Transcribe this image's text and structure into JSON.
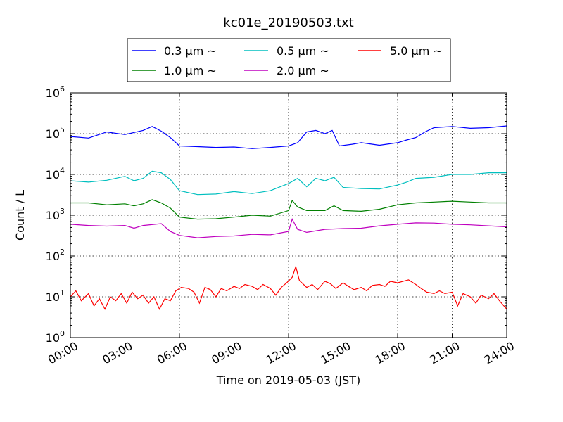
{
  "chart_data": {
    "type": "line",
    "title": "kc01e_20190503.txt",
    "xlabel": "Time on 2019-05-03 (JST)",
    "ylabel": "Count / L",
    "y_scale": "log",
    "ylim": [
      1,
      1000000
    ],
    "xlim": [
      "00:00",
      "24:00"
    ],
    "x_ticks": [
      "00:00",
      "03:00",
      "06:00",
      "09:00",
      "12:00",
      "15:00",
      "18:00",
      "21:00",
      "24:00"
    ],
    "y_ticks": [
      {
        "base": "10",
        "exp": "0"
      },
      {
        "base": "10",
        "exp": "1"
      },
      {
        "base": "10",
        "exp": "2"
      },
      {
        "base": "10",
        "exp": "3"
      },
      {
        "base": "10",
        "exp": "4"
      },
      {
        "base": "10",
        "exp": "5"
      },
      {
        "base": "10",
        "exp": "6"
      }
    ],
    "grid": true,
    "legend_position": "top-center",
    "series": [
      {
        "name": "0.3 μm ~",
        "color": "#0000ff",
        "points": [
          [
            0,
            85000
          ],
          [
            1,
            78000
          ],
          [
            2,
            110000
          ],
          [
            3,
            95000
          ],
          [
            4,
            120000
          ],
          [
            4.5,
            150000
          ],
          [
            5,
            115000
          ],
          [
            5.5,
            80000
          ],
          [
            6,
            50000
          ],
          [
            7,
            48000
          ],
          [
            8,
            46000
          ],
          [
            9,
            47000
          ],
          [
            10,
            43000
          ],
          [
            11,
            46000
          ],
          [
            12,
            50000
          ],
          [
            12.5,
            60000
          ],
          [
            13,
            110000
          ],
          [
            13.5,
            120000
          ],
          [
            14,
            100000
          ],
          [
            14.4,
            120000
          ],
          [
            14.8,
            50000
          ],
          [
            15.5,
            55000
          ],
          [
            16,
            60000
          ],
          [
            17,
            52000
          ],
          [
            18,
            60000
          ],
          [
            18.5,
            70000
          ],
          [
            19,
            80000
          ],
          [
            19.5,
            110000
          ],
          [
            20,
            140000
          ],
          [
            21,
            150000
          ],
          [
            22,
            135000
          ],
          [
            23,
            140000
          ],
          [
            24,
            155000
          ]
        ]
      },
      {
        "name": "0.5 μm ~",
        "color": "#00bfbf",
        "points": [
          [
            0,
            7000
          ],
          [
            1,
            6500
          ],
          [
            2,
            7200
          ],
          [
            3,
            9000
          ],
          [
            3.5,
            7000
          ],
          [
            4,
            8000
          ],
          [
            4.5,
            12000
          ],
          [
            5,
            11000
          ],
          [
            5.5,
            7500
          ],
          [
            6,
            4000
          ],
          [
            7,
            3200
          ],
          [
            8,
            3300
          ],
          [
            9,
            3800
          ],
          [
            10,
            3400
          ],
          [
            11,
            4000
          ],
          [
            12,
            6000
          ],
          [
            12.5,
            8000
          ],
          [
            13,
            5000
          ],
          [
            13.5,
            8000
          ],
          [
            14,
            7000
          ],
          [
            14.5,
            8500
          ],
          [
            15,
            4800
          ],
          [
            16,
            4500
          ],
          [
            17,
            4400
          ],
          [
            18,
            5500
          ],
          [
            18.5,
            6500
          ],
          [
            19,
            8000
          ],
          [
            20,
            8500
          ],
          [
            21,
            10000
          ],
          [
            22,
            10000
          ],
          [
            23,
            11000
          ],
          [
            24,
            11000
          ]
        ]
      },
      {
        "name": "1.0 μm ~",
        "color": "#008000",
        "points": [
          [
            0,
            2000
          ],
          [
            1,
            2000
          ],
          [
            2,
            1800
          ],
          [
            3,
            1900
          ],
          [
            3.5,
            1700
          ],
          [
            4,
            1900
          ],
          [
            4.5,
            2400
          ],
          [
            5,
            2000
          ],
          [
            5.5,
            1500
          ],
          [
            6,
            900
          ],
          [
            7,
            800
          ],
          [
            8,
            820
          ],
          [
            9,
            900
          ],
          [
            10,
            1000
          ],
          [
            11,
            950
          ],
          [
            12,
            1300
          ],
          [
            12.2,
            2300
          ],
          [
            12.5,
            1600
          ],
          [
            13,
            1300
          ],
          [
            14,
            1300
          ],
          [
            14.5,
            1700
          ],
          [
            15,
            1300
          ],
          [
            16,
            1250
          ],
          [
            17,
            1400
          ],
          [
            18,
            1800
          ],
          [
            19,
            2000
          ],
          [
            20,
            2100
          ],
          [
            21,
            2200
          ],
          [
            22,
            2100
          ],
          [
            23,
            2000
          ],
          [
            24,
            2000
          ]
        ]
      },
      {
        "name": "2.0 μm ~",
        "color": "#bf00bf",
        "points": [
          [
            0,
            600
          ],
          [
            1,
            560
          ],
          [
            2,
            540
          ],
          [
            3,
            560
          ],
          [
            3.5,
            480
          ],
          [
            4,
            560
          ],
          [
            5,
            620
          ],
          [
            5.5,
            400
          ],
          [
            6,
            320
          ],
          [
            7,
            280
          ],
          [
            8,
            300
          ],
          [
            9,
            310
          ],
          [
            10,
            340
          ],
          [
            11,
            330
          ],
          [
            12,
            400
          ],
          [
            12.2,
            800
          ],
          [
            12.5,
            450
          ],
          [
            13,
            380
          ],
          [
            14,
            450
          ],
          [
            15,
            470
          ],
          [
            16,
            480
          ],
          [
            17,
            550
          ],
          [
            18,
            600
          ],
          [
            19,
            650
          ],
          [
            20,
            640
          ],
          [
            21,
            600
          ],
          [
            22,
            580
          ],
          [
            23,
            550
          ],
          [
            24,
            520
          ]
        ]
      },
      {
        "name": "5.0 μm ~",
        "color": "#ff0000",
        "points": [
          [
            0,
            10
          ],
          [
            0.3,
            14
          ],
          [
            0.6,
            8
          ],
          [
            1,
            12
          ],
          [
            1.3,
            6
          ],
          [
            1.6,
            9
          ],
          [
            1.9,
            5
          ],
          [
            2.2,
            10
          ],
          [
            2.5,
            8
          ],
          [
            2.8,
            12
          ],
          [
            3.1,
            7
          ],
          [
            3.4,
            13
          ],
          [
            3.7,
            9
          ],
          [
            4,
            11
          ],
          [
            4.3,
            7
          ],
          [
            4.6,
            10
          ],
          [
            4.9,
            5
          ],
          [
            5.2,
            9
          ],
          [
            5.5,
            8
          ],
          [
            5.8,
            14
          ],
          [
            6.1,
            17
          ],
          [
            6.5,
            16
          ],
          [
            6.8,
            13
          ],
          [
            7.1,
            7
          ],
          [
            7.4,
            17
          ],
          [
            7.7,
            15
          ],
          [
            8,
            10
          ],
          [
            8.3,
            16
          ],
          [
            8.6,
            14
          ],
          [
            9,
            18
          ],
          [
            9.3,
            16
          ],
          [
            9.6,
            20
          ],
          [
            10,
            18
          ],
          [
            10.3,
            15
          ],
          [
            10.6,
            20
          ],
          [
            11,
            16
          ],
          [
            11.3,
            11
          ],
          [
            11.6,
            17
          ],
          [
            11.9,
            22
          ],
          [
            12.2,
            30
          ],
          [
            12.4,
            55
          ],
          [
            12.6,
            25
          ],
          [
            13,
            17
          ],
          [
            13.3,
            20
          ],
          [
            13.6,
            15
          ],
          [
            14,
            24
          ],
          [
            14.3,
            21
          ],
          [
            14.6,
            16
          ],
          [
            15,
            22
          ],
          [
            15.3,
            18
          ],
          [
            15.6,
            15
          ],
          [
            16,
            17
          ],
          [
            16.3,
            14
          ],
          [
            16.6,
            19
          ],
          [
            17,
            20
          ],
          [
            17.3,
            18
          ],
          [
            17.6,
            24
          ],
          [
            18,
            22
          ],
          [
            18.3,
            24
          ],
          [
            18.6,
            26
          ],
          [
            19,
            20
          ],
          [
            19.3,
            16
          ],
          [
            19.6,
            13
          ],
          [
            20,
            12
          ],
          [
            20.3,
            14
          ],
          [
            20.6,
            12
          ],
          [
            21,
            13
          ],
          [
            21.3,
            6
          ],
          [
            21.6,
            12
          ],
          [
            22,
            10
          ],
          [
            22.3,
            7
          ],
          [
            22.6,
            11
          ],
          [
            23,
            9
          ],
          [
            23.3,
            12
          ],
          [
            23.6,
            8
          ],
          [
            24,
            5
          ]
        ]
      }
    ]
  }
}
